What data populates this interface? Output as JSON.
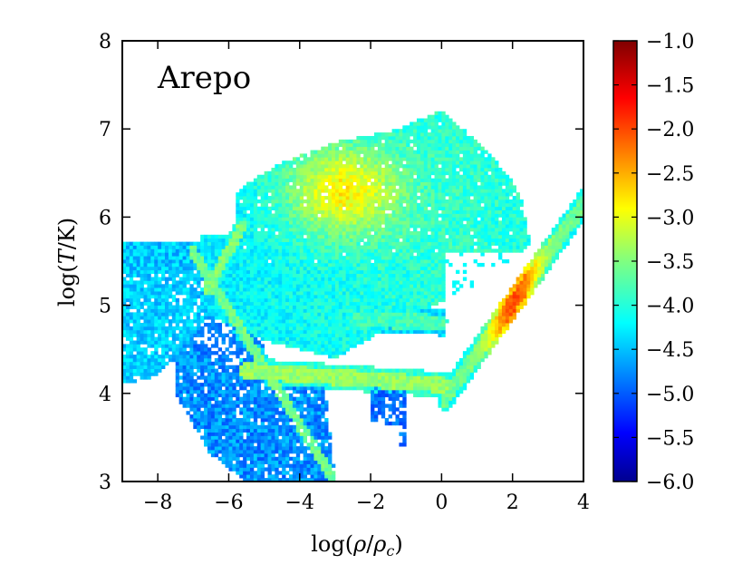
{
  "chart_data": {
    "type": "heatmap",
    "title": "",
    "panel_label": "Arepo",
    "xlabel": "log(ρ/ρc)",
    "xlabel_parts": {
      "prefix": "log(",
      "num": "ρ",
      "slash": "/",
      "den": "ρ",
      "den_sub": "c",
      "suffix": ")"
    },
    "ylabel": "log(T/K)",
    "ylabel_parts": {
      "prefix": "log(",
      "var": "T",
      "suffix": "/K)"
    },
    "xlim": [
      -9,
      4
    ],
    "ylim": [
      3,
      8
    ],
    "xticks": [
      -8,
      -6,
      -4,
      -2,
      0,
      2,
      4
    ],
    "xtick_labels": [
      "−8",
      "−6",
      "−4",
      "−2",
      "0",
      "2",
      "4"
    ],
    "yticks": [
      3,
      4,
      5,
      6,
      7,
      8
    ],
    "ytick_labels": [
      "3",
      "4",
      "5",
      "6",
      "7",
      "8"
    ],
    "grid": false,
    "colorbar": {
      "range": [
        -6.0,
        -1.0
      ],
      "colormap": "jet",
      "ticks": [
        -6.0,
        -5.5,
        -5.0,
        -4.5,
        -4.0,
        -3.5,
        -3.0,
        -2.5,
        -2.0,
        -1.5,
        -1.0
      ],
      "tick_labels": [
        "−6.0",
        "−5.5",
        "−5.0",
        "−4.5",
        "−4.0",
        "−3.5",
        "−3.0",
        "−2.5",
        "−2.0",
        "−1.5",
        "−1.0"
      ]
    },
    "features": [
      {
        "name": "uv-background-plateau",
        "type": "band",
        "x": [
          -9,
          -5.8
        ],
        "y": [
          5.7,
          5.7
        ],
        "value": -4.2
      },
      {
        "name": "hot-halo-peak",
        "type": "blob",
        "x": -2.8,
        "y": 6.3,
        "value": -2.6
      },
      {
        "name": "adiabatic-track-upper",
        "type": "line",
        "x": [
          -6.6,
          -5.6
        ],
        "y": [
          5.2,
          5.9
        ],
        "value": -3.5
      },
      {
        "name": "cool-gas-diagonal",
        "type": "line",
        "x": [
          -7.0,
          -3.0
        ],
        "y": [
          5.6,
          3.0
        ],
        "value": -3.6
      },
      {
        "name": "t4-ledge",
        "type": "line",
        "x": [
          -5.6,
          0.1
        ],
        "y": [
          4.26,
          4.1
        ],
        "value": -3.4
      },
      {
        "name": "shocked-branch",
        "type": "line",
        "x": [
          -2.4,
          0.1
        ],
        "y": [
          4.85,
          4.8
        ],
        "value": -3.8
      },
      {
        "name": "isothermal-sf-track",
        "type": "line",
        "x": [
          0.1,
          4.0
        ],
        "y": [
          3.95,
          6.15
        ],
        "value": -2.2
      }
    ]
  }
}
